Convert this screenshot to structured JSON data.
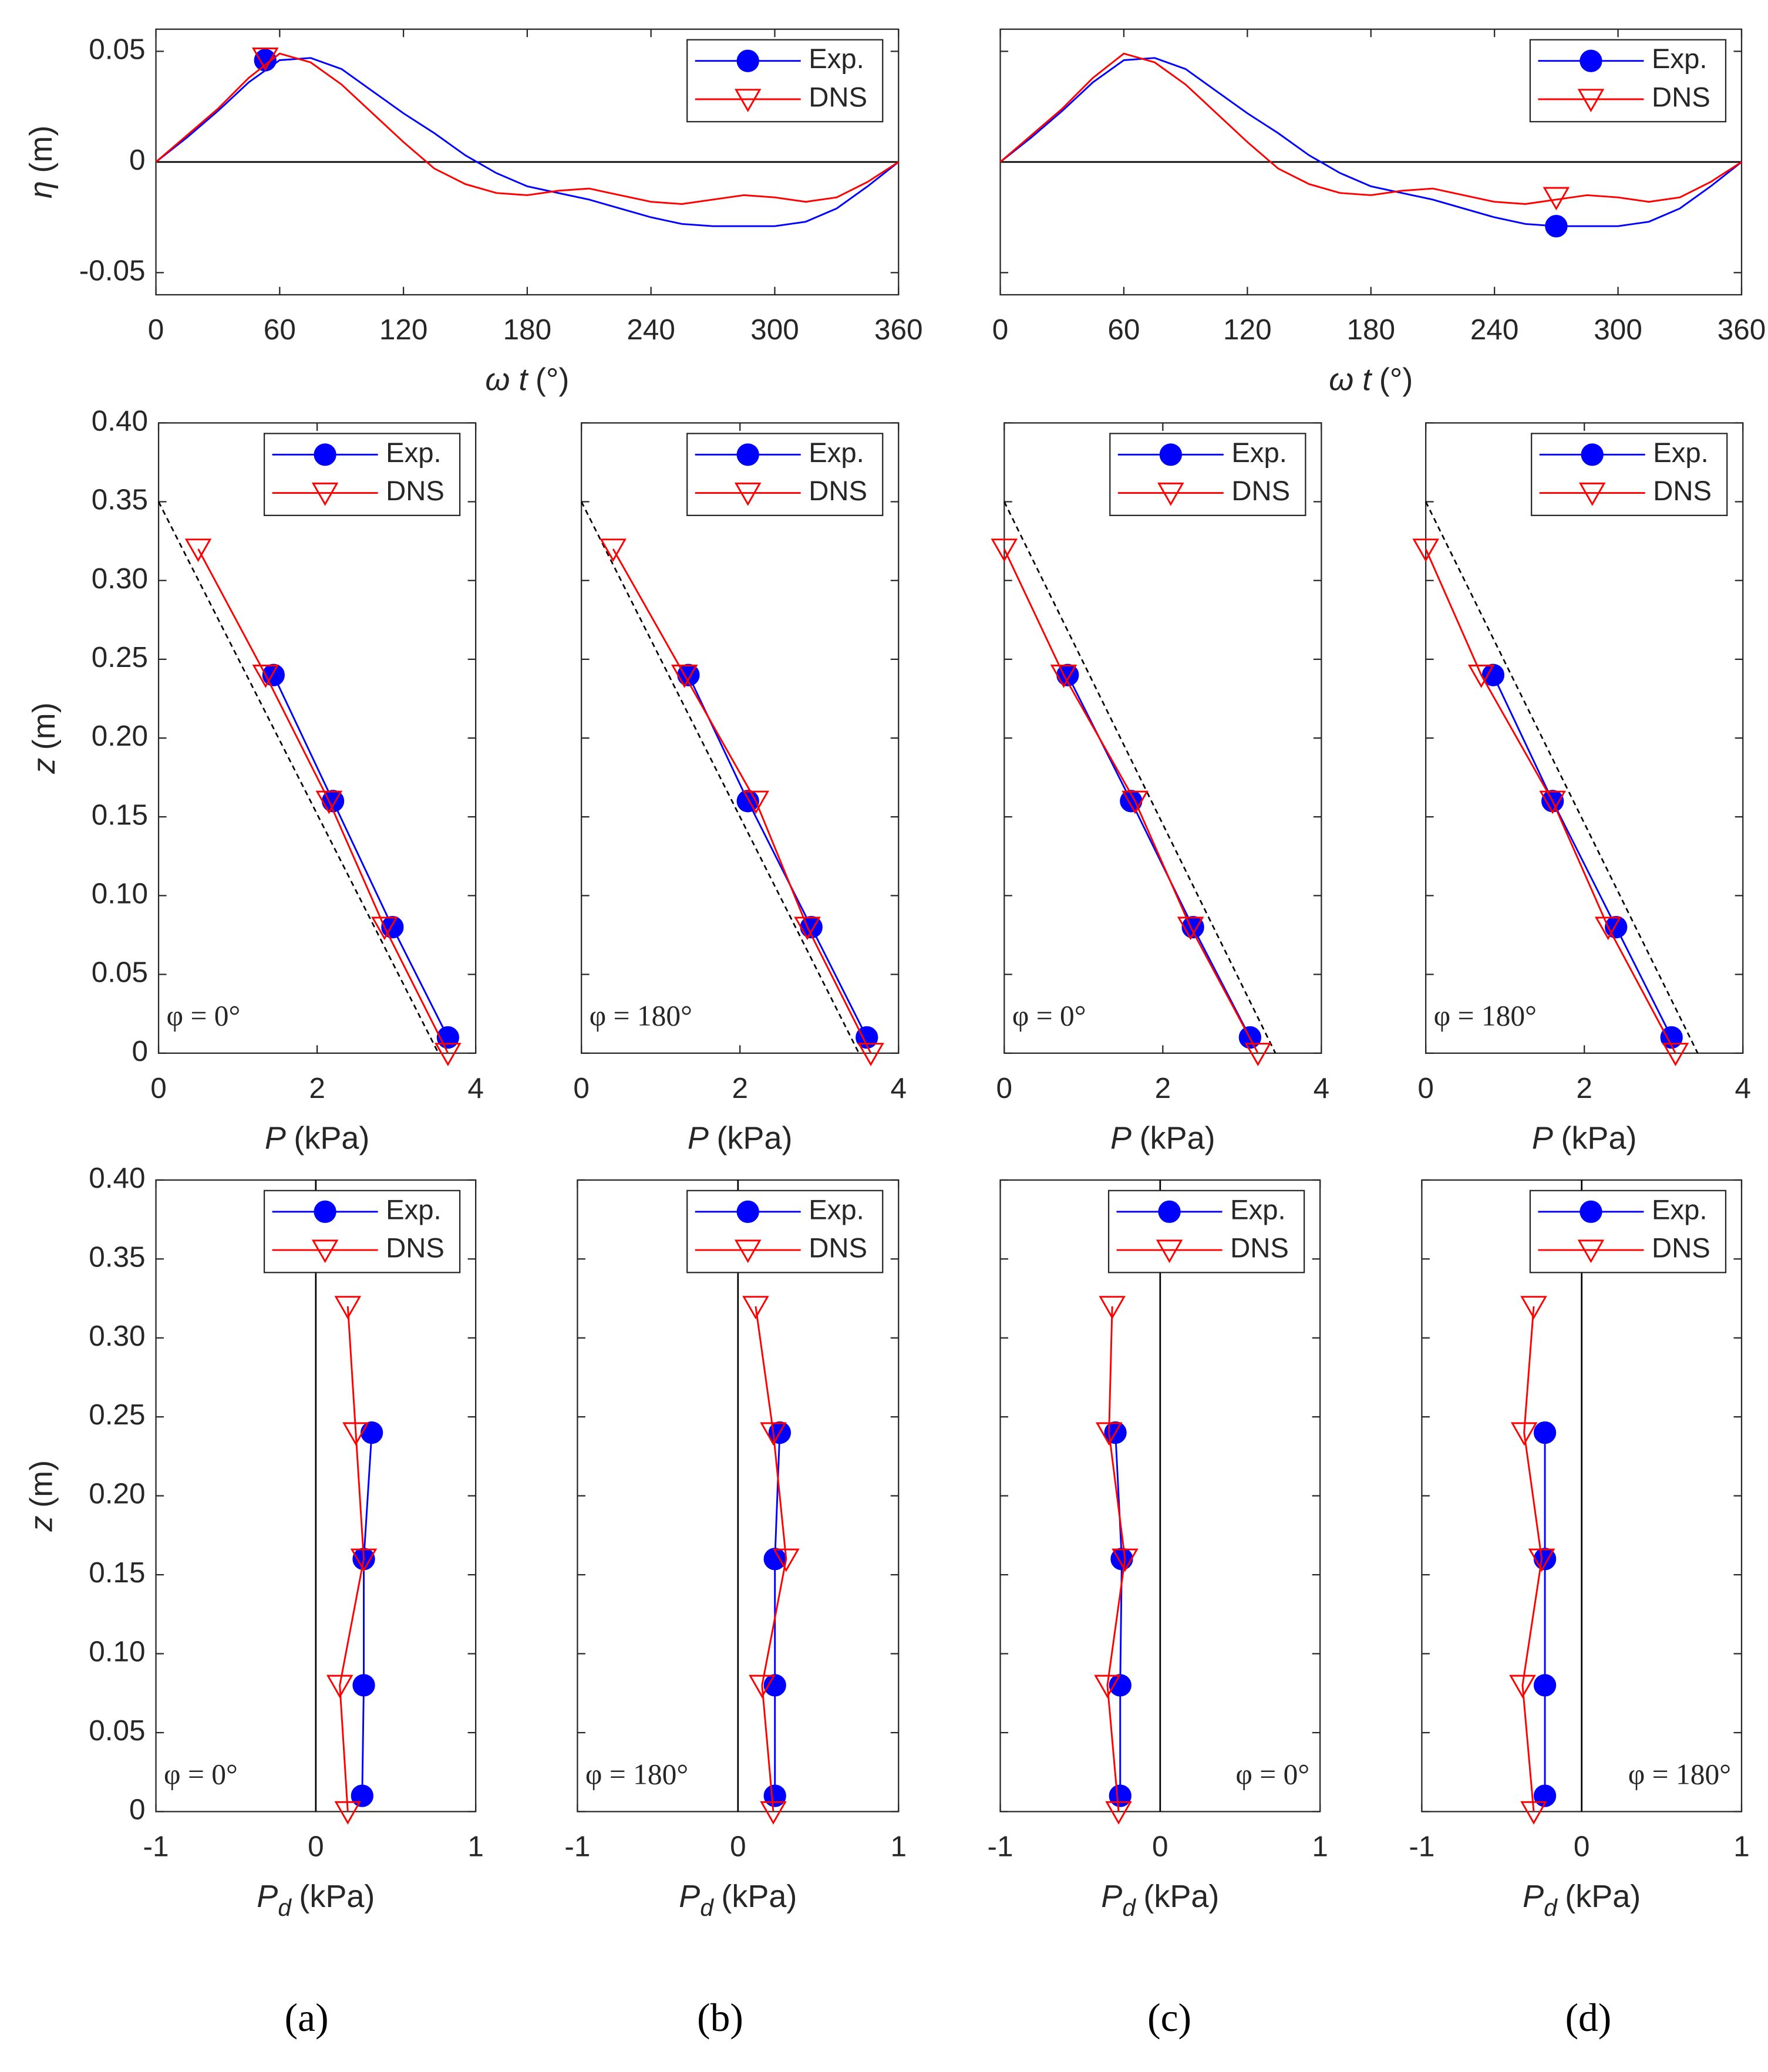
{
  "chart_data": [
    {
      "type": "line",
      "ylabel": {
        "symbol": "η",
        "unit": "(m)"
      },
      "xlabel": {
        "symbol": "ω t",
        "unit": "(°)"
      },
      "x": [
        0,
        15,
        30,
        45,
        60,
        75,
        90,
        105,
        120,
        135,
        150,
        165,
        180,
        195,
        210,
        225,
        240,
        255,
        270,
        285,
        300,
        315,
        330,
        345,
        360
      ],
      "series": [
        {
          "name": "Exp.",
          "color": "#0000ff",
          "marker_shape": "circle",
          "values": [
            0,
            0.011,
            0.023,
            0.036,
            0.046,
            0.047,
            0.042,
            0.032,
            0.022,
            0.013,
            0.003,
            -0.005,
            -0.011,
            -0.014,
            -0.017,
            -0.021,
            -0.025,
            -0.028,
            -0.029,
            -0.029,
            -0.029,
            -0.027,
            -0.021,
            -0.011,
            0
          ],
          "marker": {
            "x": 53,
            "value": 0.046
          }
        },
        {
          "name": "DNS",
          "color": "#ff0000",
          "marker_shape": "triangle",
          "values": [
            0,
            0.012,
            0.024,
            0.038,
            0.049,
            0.045,
            0.035,
            0.022,
            0.009,
            -0.003,
            -0.01,
            -0.014,
            -0.015,
            -0.013,
            -0.012,
            -0.015,
            -0.018,
            -0.019,
            -0.017,
            -0.015,
            -0.016,
            -0.018,
            -0.016,
            -0.009,
            0
          ],
          "marker": {
            "x": 53,
            "value": 0.047
          }
        }
      ],
      "xlim": [
        0,
        360
      ],
      "xticks": [
        0,
        60,
        120,
        180,
        240,
        300,
        360
      ],
      "ylim": [
        -0.06,
        0.06
      ],
      "yticks": [
        -0.05,
        0,
        0.05
      ],
      "zero_line": "y",
      "legend": "upper right"
    },
    {
      "type": "line",
      "xlabel": {
        "symbol": "ω t",
        "unit": "(°)"
      },
      "x": [
        0,
        15,
        30,
        45,
        60,
        75,
        90,
        105,
        120,
        135,
        150,
        165,
        180,
        195,
        210,
        225,
        240,
        255,
        270,
        285,
        300,
        315,
        330,
        345,
        360
      ],
      "series": [
        {
          "name": "Exp.",
          "color": "#0000ff",
          "marker_shape": "circle",
          "values": [
            0,
            0.011,
            0.023,
            0.036,
            0.046,
            0.047,
            0.042,
            0.032,
            0.022,
            0.013,
            0.003,
            -0.005,
            -0.011,
            -0.014,
            -0.017,
            -0.021,
            -0.025,
            -0.028,
            -0.029,
            -0.029,
            -0.029,
            -0.027,
            -0.021,
            -0.011,
            0
          ],
          "marker": {
            "x": 270,
            "value": -0.029
          }
        },
        {
          "name": "DNS",
          "color": "#ff0000",
          "marker_shape": "triangle",
          "values": [
            0,
            0.012,
            0.024,
            0.038,
            0.049,
            0.045,
            0.035,
            0.022,
            0.009,
            -0.003,
            -0.01,
            -0.014,
            -0.015,
            -0.013,
            -0.012,
            -0.015,
            -0.018,
            -0.019,
            -0.017,
            -0.015,
            -0.016,
            -0.018,
            -0.016,
            -0.009,
            0
          ],
          "marker": {
            "x": 270,
            "value": -0.016
          }
        }
      ],
      "xlim": [
        0,
        360
      ],
      "xticks": [
        0,
        60,
        120,
        180,
        240,
        300,
        360
      ],
      "ylim": [
        -0.06,
        0.06
      ],
      "yticks": [
        -0.05,
        0,
        0.05
      ],
      "ytick_labels": false,
      "zero_line": "y",
      "legend": "upper right"
    },
    {
      "type": "line",
      "ylabel": {
        "symbol": "z",
        "unit": "(m)"
      },
      "xlabel": {
        "symbol": "P",
        "unit": "(kPa)"
      },
      "markers": true,
      "series": [
        {
          "name": "Exp.",
          "color": "#0000ff",
          "marker_shape": "circle",
          "x": [
            1.45,
            2.2,
            2.95,
            3.65
          ],
          "values": [
            0.24,
            0.16,
            0.08,
            0.01
          ]
        },
        {
          "name": "DNS",
          "color": "#ff0000",
          "marker_shape": "triangle",
          "x": [
            0.5,
            1.35,
            2.15,
            2.85,
            3.65
          ],
          "values": [
            0.32,
            0.24,
            0.16,
            0.08,
            0
          ]
        }
      ],
      "reference_line": {
        "x": [
          0,
          3.53
        ],
        "values": [
          0.35,
          0
        ]
      },
      "xlim": [
        0,
        4
      ],
      "xticks": [
        0,
        2,
        4
      ],
      "ylim": [
        0,
        0.4
      ],
      "yticks": [
        0,
        0.05,
        {
          "value": 0.1,
          "label": "0.10"
        },
        0.15,
        {
          "value": 0.2,
          "label": "0.20"
        },
        0.25,
        {
          "value": 0.3,
          "label": "0.30"
        },
        0.35,
        {
          "value": 0.4,
          "label": "0.40"
        }
      ],
      "legend": "upper right",
      "annotation": "φ = 0°",
      "annotation_position": "lower left"
    },
    {
      "type": "line",
      "xlabel": {
        "symbol": "P",
        "unit": "(kPa)"
      },
      "markers": true,
      "series": [
        {
          "name": "Exp.",
          "color": "#0000ff",
          "marker_shape": "circle",
          "x": [
            1.35,
            2.1,
            2.9,
            3.6
          ],
          "values": [
            0.24,
            0.16,
            0.08,
            0.01
          ]
        },
        {
          "name": "DNS",
          "color": "#ff0000",
          "marker_shape": "triangle",
          "x": [
            0.4,
            1.3,
            2.2,
            2.85,
            3.65
          ],
          "values": [
            0.32,
            0.24,
            0.16,
            0.08,
            0
          ]
        }
      ],
      "reference_line": {
        "x": [
          0,
          3.5
        ],
        "values": [
          0.35,
          0
        ]
      },
      "xlim": [
        0,
        4
      ],
      "xticks": [
        0,
        2,
        4
      ],
      "ylim": [
        0,
        0.4
      ],
      "yticks": [
        0,
        0.05,
        0.1,
        0.15,
        0.2,
        0.25,
        0.3,
        0.35,
        0.4
      ],
      "ytick_labels": false,
      "legend": "upper right",
      "annotation": "φ = 180°",
      "annotation_position": "lower left"
    },
    {
      "type": "line",
      "xlabel": {
        "symbol": "P",
        "unit": "(kPa)"
      },
      "markers": true,
      "series": [
        {
          "name": "Exp.",
          "color": "#0000ff",
          "marker_shape": "circle",
          "x": [
            0.8,
            1.6,
            2.38,
            3.1
          ],
          "values": [
            0.24,
            0.16,
            0.08,
            0.01
          ]
        },
        {
          "name": "DNS",
          "color": "#ff0000",
          "marker_shape": "triangle",
          "x": [
            0,
            0.75,
            1.65,
            2.35,
            3.2
          ],
          "values": [
            0.32,
            0.24,
            0.16,
            0.08,
            0
          ]
        }
      ],
      "reference_line": {
        "x": [
          0,
          3.42
        ],
        "values": [
          0.35,
          0
        ]
      },
      "xlim": [
        0,
        4
      ],
      "xticks": [
        0,
        2,
        4
      ],
      "ylim": [
        0,
        0.4
      ],
      "yticks": [
        0,
        0.05,
        0.1,
        0.15,
        0.2,
        0.25,
        0.3,
        0.35,
        0.4
      ],
      "ytick_labels": false,
      "legend": "upper right",
      "annotation": "φ = 0°",
      "annotation_position": "lower left"
    },
    {
      "type": "line",
      "xlabel": {
        "symbol": "P",
        "unit": "(kPa)"
      },
      "markers": true,
      "series": [
        {
          "name": "Exp.",
          "color": "#0000ff",
          "marker_shape": "circle",
          "x": [
            0.85,
            1.6,
            2.4,
            3.1
          ],
          "values": [
            0.24,
            0.16,
            0.08,
            0.01
          ]
        },
        {
          "name": "DNS",
          "color": "#ff0000",
          "marker_shape": "triangle",
          "x": [
            0,
            0.7,
            1.6,
            2.3,
            3.15
          ],
          "values": [
            0.32,
            0.24,
            0.16,
            0.08,
            0
          ]
        }
      ],
      "reference_line": {
        "x": [
          0,
          3.43
        ],
        "values": [
          0.35,
          0
        ]
      },
      "xlim": [
        0,
        4
      ],
      "xticks": [
        0,
        2,
        4
      ],
      "ylim": [
        0,
        0.4
      ],
      "yticks": [
        0,
        0.05,
        0.1,
        0.15,
        0.2,
        0.25,
        0.3,
        0.35,
        0.4
      ],
      "ytick_labels": false,
      "legend": "upper right",
      "annotation": "φ = 180°",
      "annotation_position": "lower left"
    },
    {
      "type": "line",
      "ylabel": {
        "symbol": "z",
        "unit": "(m)"
      },
      "xlabel": {
        "symbol": "P",
        "subscript": "d",
        "unit": "(kPa)"
      },
      "markers": true,
      "series": [
        {
          "name": "Exp.",
          "color": "#0000ff",
          "marker_shape": "circle",
          "x": [
            0.35,
            0.3,
            0.3,
            0.29
          ],
          "values": [
            0.24,
            0.16,
            0.08,
            0.01
          ]
        },
        {
          "name": "DNS",
          "color": "#ff0000",
          "marker_shape": "triangle",
          "x": [
            0.2,
            0.25,
            0.3,
            0.15,
            0.2
          ],
          "values": [
            0.32,
            0.24,
            0.16,
            0.08,
            0
          ]
        }
      ],
      "xlim": [
        -1,
        1
      ],
      "xticks": [
        -1,
        0,
        1
      ],
      "ylim": [
        0,
        0.4
      ],
      "yticks": [
        0,
        0.05,
        {
          "value": 0.1,
          "label": "0.10"
        },
        0.15,
        {
          "value": 0.2,
          "label": "0.20"
        },
        0.25,
        {
          "value": 0.3,
          "label": "0.30"
        },
        0.35,
        {
          "value": 0.4,
          "label": "0.40"
        }
      ],
      "zero_line": "x",
      "legend": "upper right",
      "annotation": "φ = 0°",
      "annotation_position": "lower left"
    },
    {
      "type": "line",
      "xlabel": {
        "symbol": "P",
        "subscript": "d",
        "unit": "(kPa)"
      },
      "markers": true,
      "series": [
        {
          "name": "Exp.",
          "color": "#0000ff",
          "marker_shape": "circle",
          "x": [
            0.26,
            0.23,
            0.23,
            0.23
          ],
          "values": [
            0.24,
            0.16,
            0.08,
            0.01
          ]
        },
        {
          "name": "DNS",
          "color": "#ff0000",
          "marker_shape": "triangle",
          "x": [
            0.11,
            0.22,
            0.3,
            0.15,
            0.22
          ],
          "values": [
            0.32,
            0.24,
            0.16,
            0.08,
            0
          ]
        }
      ],
      "xlim": [
        -1,
        1
      ],
      "xticks": [
        -1,
        0,
        1
      ],
      "ylim": [
        0,
        0.4
      ],
      "yticks": [
        0,
        0.05,
        0.1,
        0.15,
        0.2,
        0.25,
        0.3,
        0.35,
        0.4
      ],
      "ytick_labels": false,
      "zero_line": "x",
      "legend": "upper right",
      "annotation": "φ = 180°",
      "annotation_position": "lower left"
    },
    {
      "type": "line",
      "xlabel": {
        "symbol": "P",
        "subscript": "d",
        "unit": "(kPa)"
      },
      "markers": true,
      "series": [
        {
          "name": "Exp.",
          "color": "#0000ff",
          "marker_shape": "circle",
          "x": [
            -0.28,
            -0.24,
            -0.25,
            -0.25
          ],
          "values": [
            0.24,
            0.16,
            0.08,
            0.01
          ]
        },
        {
          "name": "DNS",
          "color": "#ff0000",
          "marker_shape": "triangle",
          "x": [
            -0.3,
            -0.32,
            -0.22,
            -0.33,
            -0.26
          ],
          "values": [
            0.32,
            0.24,
            0.16,
            0.08,
            0
          ]
        }
      ],
      "xlim": [
        -1,
        1
      ],
      "xticks": [
        -1,
        0,
        1
      ],
      "ylim": [
        0,
        0.4
      ],
      "yticks": [
        0,
        0.05,
        0.1,
        0.15,
        0.2,
        0.25,
        0.3,
        0.35,
        0.4
      ],
      "ytick_labels": false,
      "zero_line": "x",
      "legend": "upper right",
      "annotation": "φ = 0°",
      "annotation_position": "lower right"
    },
    {
      "type": "line",
      "xlabel": {
        "symbol": "P",
        "subscript": "d",
        "unit": "(kPa)"
      },
      "markers": true,
      "series": [
        {
          "name": "Exp.",
          "color": "#0000ff",
          "marker_shape": "circle",
          "x": [
            -0.23,
            -0.23,
            -0.23,
            -0.23
          ],
          "values": [
            0.24,
            0.16,
            0.08,
            0.01
          ]
        },
        {
          "name": "DNS",
          "color": "#ff0000",
          "marker_shape": "triangle",
          "x": [
            -0.3,
            -0.36,
            -0.25,
            -0.37,
            -0.3
          ],
          "values": [
            0.32,
            0.24,
            0.16,
            0.08,
            0
          ]
        }
      ],
      "xlim": [
        -1,
        1
      ],
      "xticks": [
        -1,
        0,
        1
      ],
      "ylim": [
        0,
        0.4
      ],
      "yticks": [
        0,
        0.05,
        0.1,
        0.15,
        0.2,
        0.25,
        0.3,
        0.35,
        0.4
      ],
      "ytick_labels": false,
      "zero_line": "x",
      "legend": "upper right",
      "annotation": "φ = 180°",
      "annotation_position": "lower right"
    }
  ],
  "panel_labels": [
    "(a)",
    "(b)",
    "(c)",
    "(d)"
  ]
}
